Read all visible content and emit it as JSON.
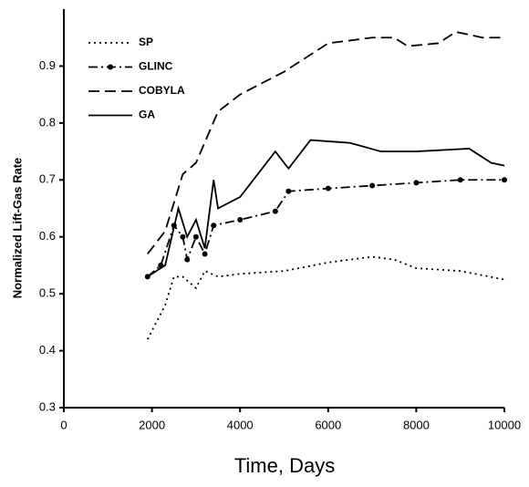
{
  "chart_data": {
    "type": "line",
    "x_label": "Time, Days",
    "y_label": "Normalized Lift-Gas Rate",
    "xlim": [
      0,
      10000
    ],
    "xticks": [
      0,
      2000,
      4000,
      6000,
      8000,
      10000
    ],
    "ylim": [
      0.3,
      1.0
    ],
    "yticks": [
      0.3,
      0.4,
      0.5,
      0.6,
      0.7,
      0.8,
      0.9
    ],
    "legend": "upper left",
    "series": [
      {
        "name": "SP",
        "color": "#000000",
        "style": "dotted",
        "marker": false,
        "x": [
          1900,
          2300,
          2500,
          2700,
          3000,
          3200,
          3500,
          4000,
          5000,
          6000,
          7000,
          7500,
          8000,
          9000,
          10000
        ],
        "values": [
          0.42,
          0.48,
          0.53,
          0.53,
          0.51,
          0.54,
          0.53,
          0.535,
          0.54,
          0.555,
          0.565,
          0.56,
          0.545,
          0.54,
          0.525
        ]
      },
      {
        "name": "GLINC",
        "color": "#000000",
        "style": "dashdot",
        "marker": true,
        "x": [
          1900,
          2200,
          2500,
          2700,
          2800,
          3000,
          3200,
          3400,
          4000,
          4800,
          5100,
          6000,
          7000,
          8000,
          9000,
          10000
        ],
        "values": [
          0.53,
          0.55,
          0.62,
          0.6,
          0.56,
          0.6,
          0.57,
          0.62,
          0.63,
          0.645,
          0.68,
          0.685,
          0.69,
          0.695,
          0.7,
          0.7
        ]
      },
      {
        "name": "COBYLA",
        "color": "#000000",
        "style": "dashed",
        "marker": false,
        "x": [
          1900,
          2300,
          2500,
          2700,
          3000,
          3500,
          4000,
          5000,
          6000,
          7000,
          7500,
          7800,
          8500,
          8900,
          9500,
          10000
        ],
        "values": [
          0.57,
          0.61,
          0.66,
          0.71,
          0.73,
          0.82,
          0.85,
          0.89,
          0.94,
          0.95,
          0.95,
          0.935,
          0.94,
          0.96,
          0.95,
          0.95
        ]
      },
      {
        "name": "GA",
        "color": "#000000",
        "style": "solid",
        "marker": false,
        "x": [
          1900,
          2300,
          2600,
          2800,
          3000,
          3200,
          3400,
          3500,
          4000,
          4800,
          5100,
          5600,
          6500,
          7200,
          8000,
          9200,
          9700,
          10000
        ],
        "values": [
          0.53,
          0.55,
          0.65,
          0.6,
          0.63,
          0.58,
          0.7,
          0.65,
          0.67,
          0.75,
          0.72,
          0.77,
          0.765,
          0.75,
          0.75,
          0.755,
          0.73,
          0.725
        ]
      }
    ]
  }
}
